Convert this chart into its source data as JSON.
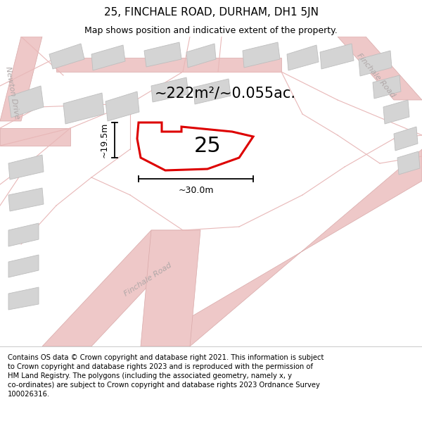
{
  "title": "25, FINCHALE ROAD, DURHAM, DH1 5JN",
  "subtitle": "Map shows position and indicative extent of the property.",
  "area_text": "~222m²/~0.055ac.",
  "label_25": "25",
  "dim_height": "~19.5m",
  "dim_width": "~30.0m",
  "footer": "Contains OS data © Crown copyright and database right 2021. This information is subject to Crown copyright and database rights 2023 and is reproduced with the permission of HM Land Registry. The polygons (including the associated geometry, namely x, y co-ordinates) are subject to Crown copyright and database rights 2023 Ordnance Survey 100026316.",
  "map_bg": "#f2f0f0",
  "road_line_color": "#e8b8b8",
  "building_fill": "#d4d4d4",
  "building_stroke": "#c0c0c0",
  "plot_fill": "#ffffff",
  "plot_stroke": "#dd0000",
  "dim_color": "#222222",
  "road_label_color": "#b0a8a8",
  "newton_drive_label": "Newton Drive",
  "finchale_road_label_bottom": "Finchale Road",
  "finchale_road_label_right": "Finchale Road",
  "title_fontsize": 11,
  "subtitle_fontsize": 9,
  "area_fontsize": 15,
  "label_fontsize": 22,
  "dim_fontsize": 9,
  "road_label_fontsize": 8,
  "footer_fontsize": 7.2
}
